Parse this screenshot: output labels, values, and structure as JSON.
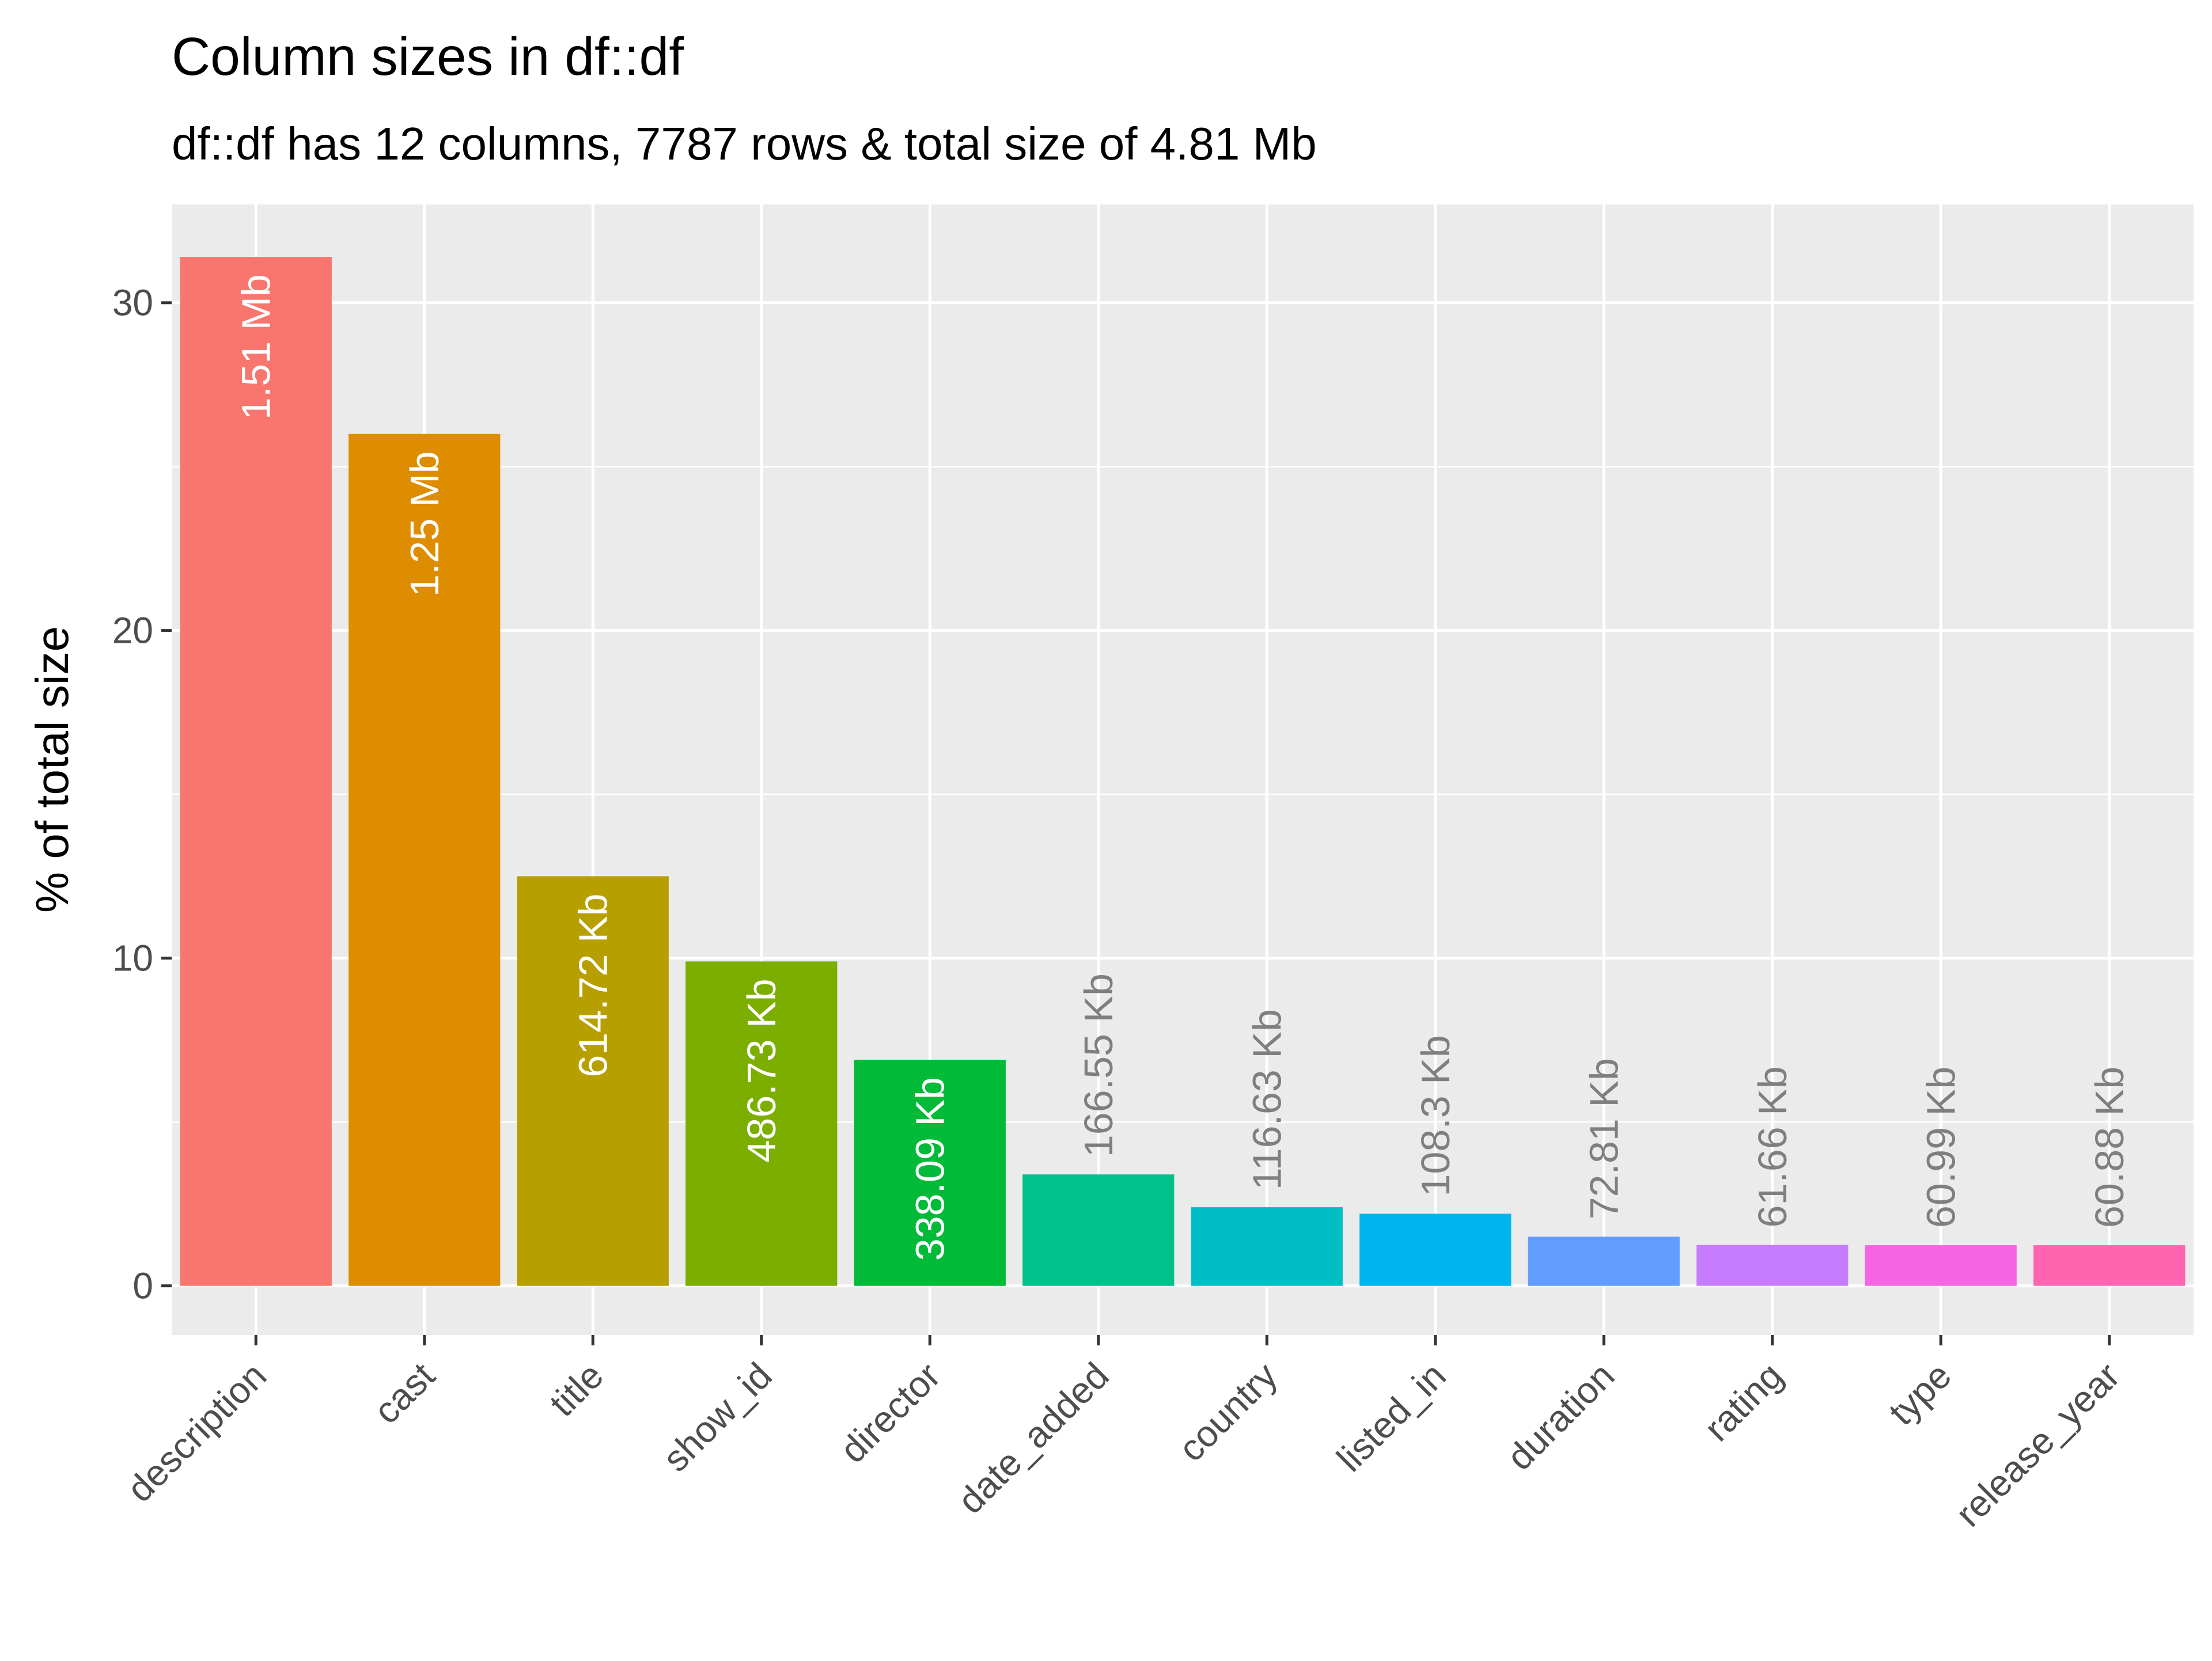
{
  "chart_data": {
    "type": "bar",
    "title": "Column sizes in df::df",
    "subtitle": "df::df has 12 columns, 7787 rows & total size of 4.81 Mb",
    "xlabel": "",
    "ylabel": "% of total size",
    "ylim": [
      -1.5,
      33.0
    ],
    "yticks": [
      0,
      10,
      20,
      30
    ],
    "grid": true,
    "legend": "none",
    "panel_background": "#ebebeb",
    "categories": [
      "description",
      "cast",
      "title",
      "show_id",
      "director",
      "date_added",
      "country",
      "listed_in",
      "duration",
      "rating",
      "type",
      "release_year"
    ],
    "values": [
      31.4,
      26.0,
      12.5,
      9.9,
      6.9,
      3.4,
      2.4,
      2.2,
      1.5,
      1.25,
      1.24,
      1.24
    ],
    "data_labels": [
      "1.51 Mb",
      "1.25 Mb",
      "614.72 Kb",
      "486.73 Kb",
      "338.09 Kb",
      "166.55 Kb",
      "116.63 Kb",
      "108.3 Kb",
      "72.81 Kb",
      "61.66 Kb",
      "60.99 Kb",
      "60.88 Kb"
    ],
    "colors": [
      "#F8766D",
      "#DE8C00",
      "#B79F00",
      "#7CAE00",
      "#00BA38",
      "#00C08B",
      "#00BFC4",
      "#00B4F0",
      "#619CFF",
      "#C77CFF",
      "#F564E3",
      "#FF64B0"
    ],
    "label_inside_color": "#ffffff",
    "label_outside_color": "#7f7f7f"
  }
}
